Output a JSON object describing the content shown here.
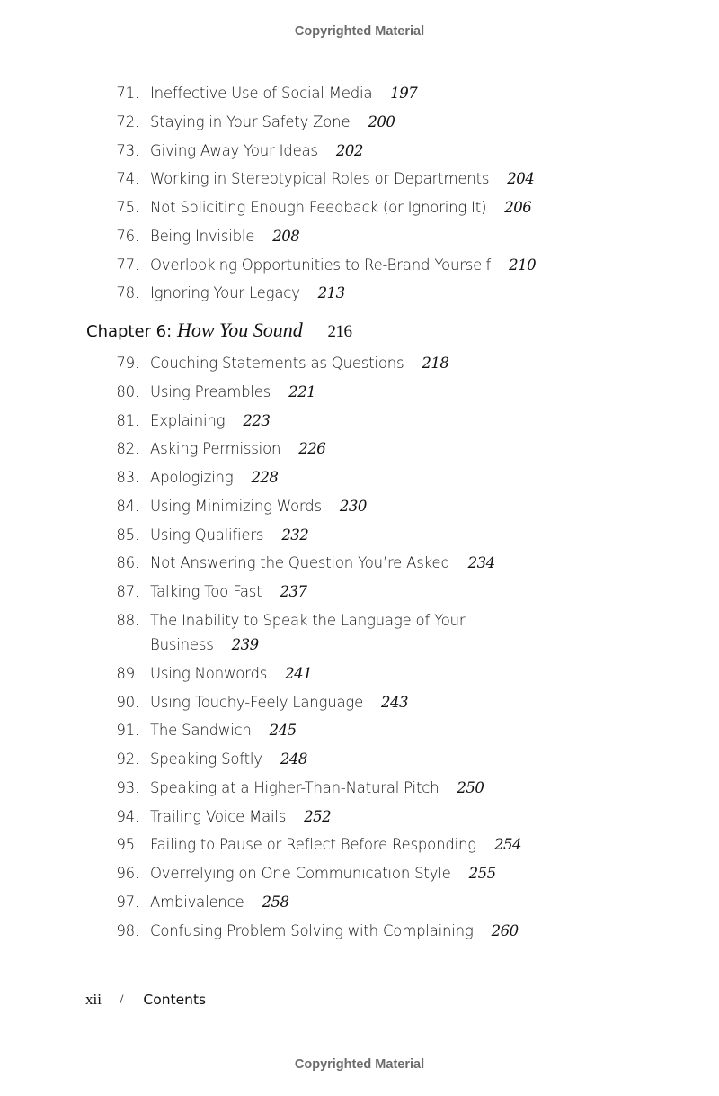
{
  "header": {
    "watermark": "Copyrighted Material"
  },
  "items_before": [
    {
      "n": "71.",
      "title": "Ineffective Use of Social Media",
      "page": "197"
    },
    {
      "n": "72.",
      "title": "Staying in Your Safety Zone",
      "page": "200"
    },
    {
      "n": "73.",
      "title": "Giving Away Your Ideas",
      "page": "202"
    },
    {
      "n": "74.",
      "title": "Working in Stereotypical Roles or Departments",
      "page": "204"
    },
    {
      "n": "75.",
      "title": "Not Soliciting Enough Feedback (or Ignoring It)",
      "page": "206"
    },
    {
      "n": "76.",
      "title": "Being Invisible",
      "page": "208"
    },
    {
      "n": "77.",
      "title": "Overlooking Opportunities to Re-Brand Yourself",
      "page": "210"
    },
    {
      "n": "78.",
      "title": "Ignoring Your Legacy",
      "page": "213"
    }
  ],
  "chapter": {
    "label": "Chapter 6:",
    "title": "How You Sound",
    "page": "216"
  },
  "items_after": [
    {
      "n": "79.",
      "title": "Couching Statements as Questions",
      "page": "218"
    },
    {
      "n": "80.",
      "title": "Using Preambles",
      "page": "221"
    },
    {
      "n": "81.",
      "title": "Explaining",
      "page": "223"
    },
    {
      "n": "82.",
      "title": "Asking Permission",
      "page": "226"
    },
    {
      "n": "83.",
      "title": "Apologizing",
      "page": "228"
    },
    {
      "n": "84.",
      "title": "Using Minimizing Words",
      "page": "230"
    },
    {
      "n": "85.",
      "title": "Using Qualifiers",
      "page": "232"
    },
    {
      "n": "86.",
      "title": "Not Answering the Question You’re Asked",
      "page": "234"
    },
    {
      "n": "87.",
      "title": "Talking Too Fast",
      "page": "237"
    },
    {
      "n": "88.",
      "title": "The Inability to Speak the Language of Your Business",
      "page": "239"
    },
    {
      "n": "89.",
      "title": "Using Nonwords",
      "page": "241"
    },
    {
      "n": "90.",
      "title": "Using Touchy-Feely Language",
      "page": "243"
    },
    {
      "n": "91.",
      "title": "The Sandwich",
      "page": "245"
    },
    {
      "n": "92.",
      "title": "Speaking Softly",
      "page": "248"
    },
    {
      "n": "93.",
      "title": "Speaking at a Higher-Than-Natural Pitch",
      "page": "250"
    },
    {
      "n": "94.",
      "title": "Trailing Voice Mails",
      "page": "252"
    },
    {
      "n": "95.",
      "title": "Failing to Pause or Reflect Before Responding",
      "page": "254"
    },
    {
      "n": "96.",
      "title": "Overrelying on One Communication Style",
      "page": "255"
    },
    {
      "n": "97.",
      "title": "Ambivalence",
      "page": "258"
    },
    {
      "n": "98.",
      "title": "Confusing Problem Solving with Complaining",
      "page": "260"
    }
  ],
  "footer": {
    "page_number": "xii",
    "separator": "/",
    "section": "Contents",
    "watermark": "Copyrighted Material"
  }
}
